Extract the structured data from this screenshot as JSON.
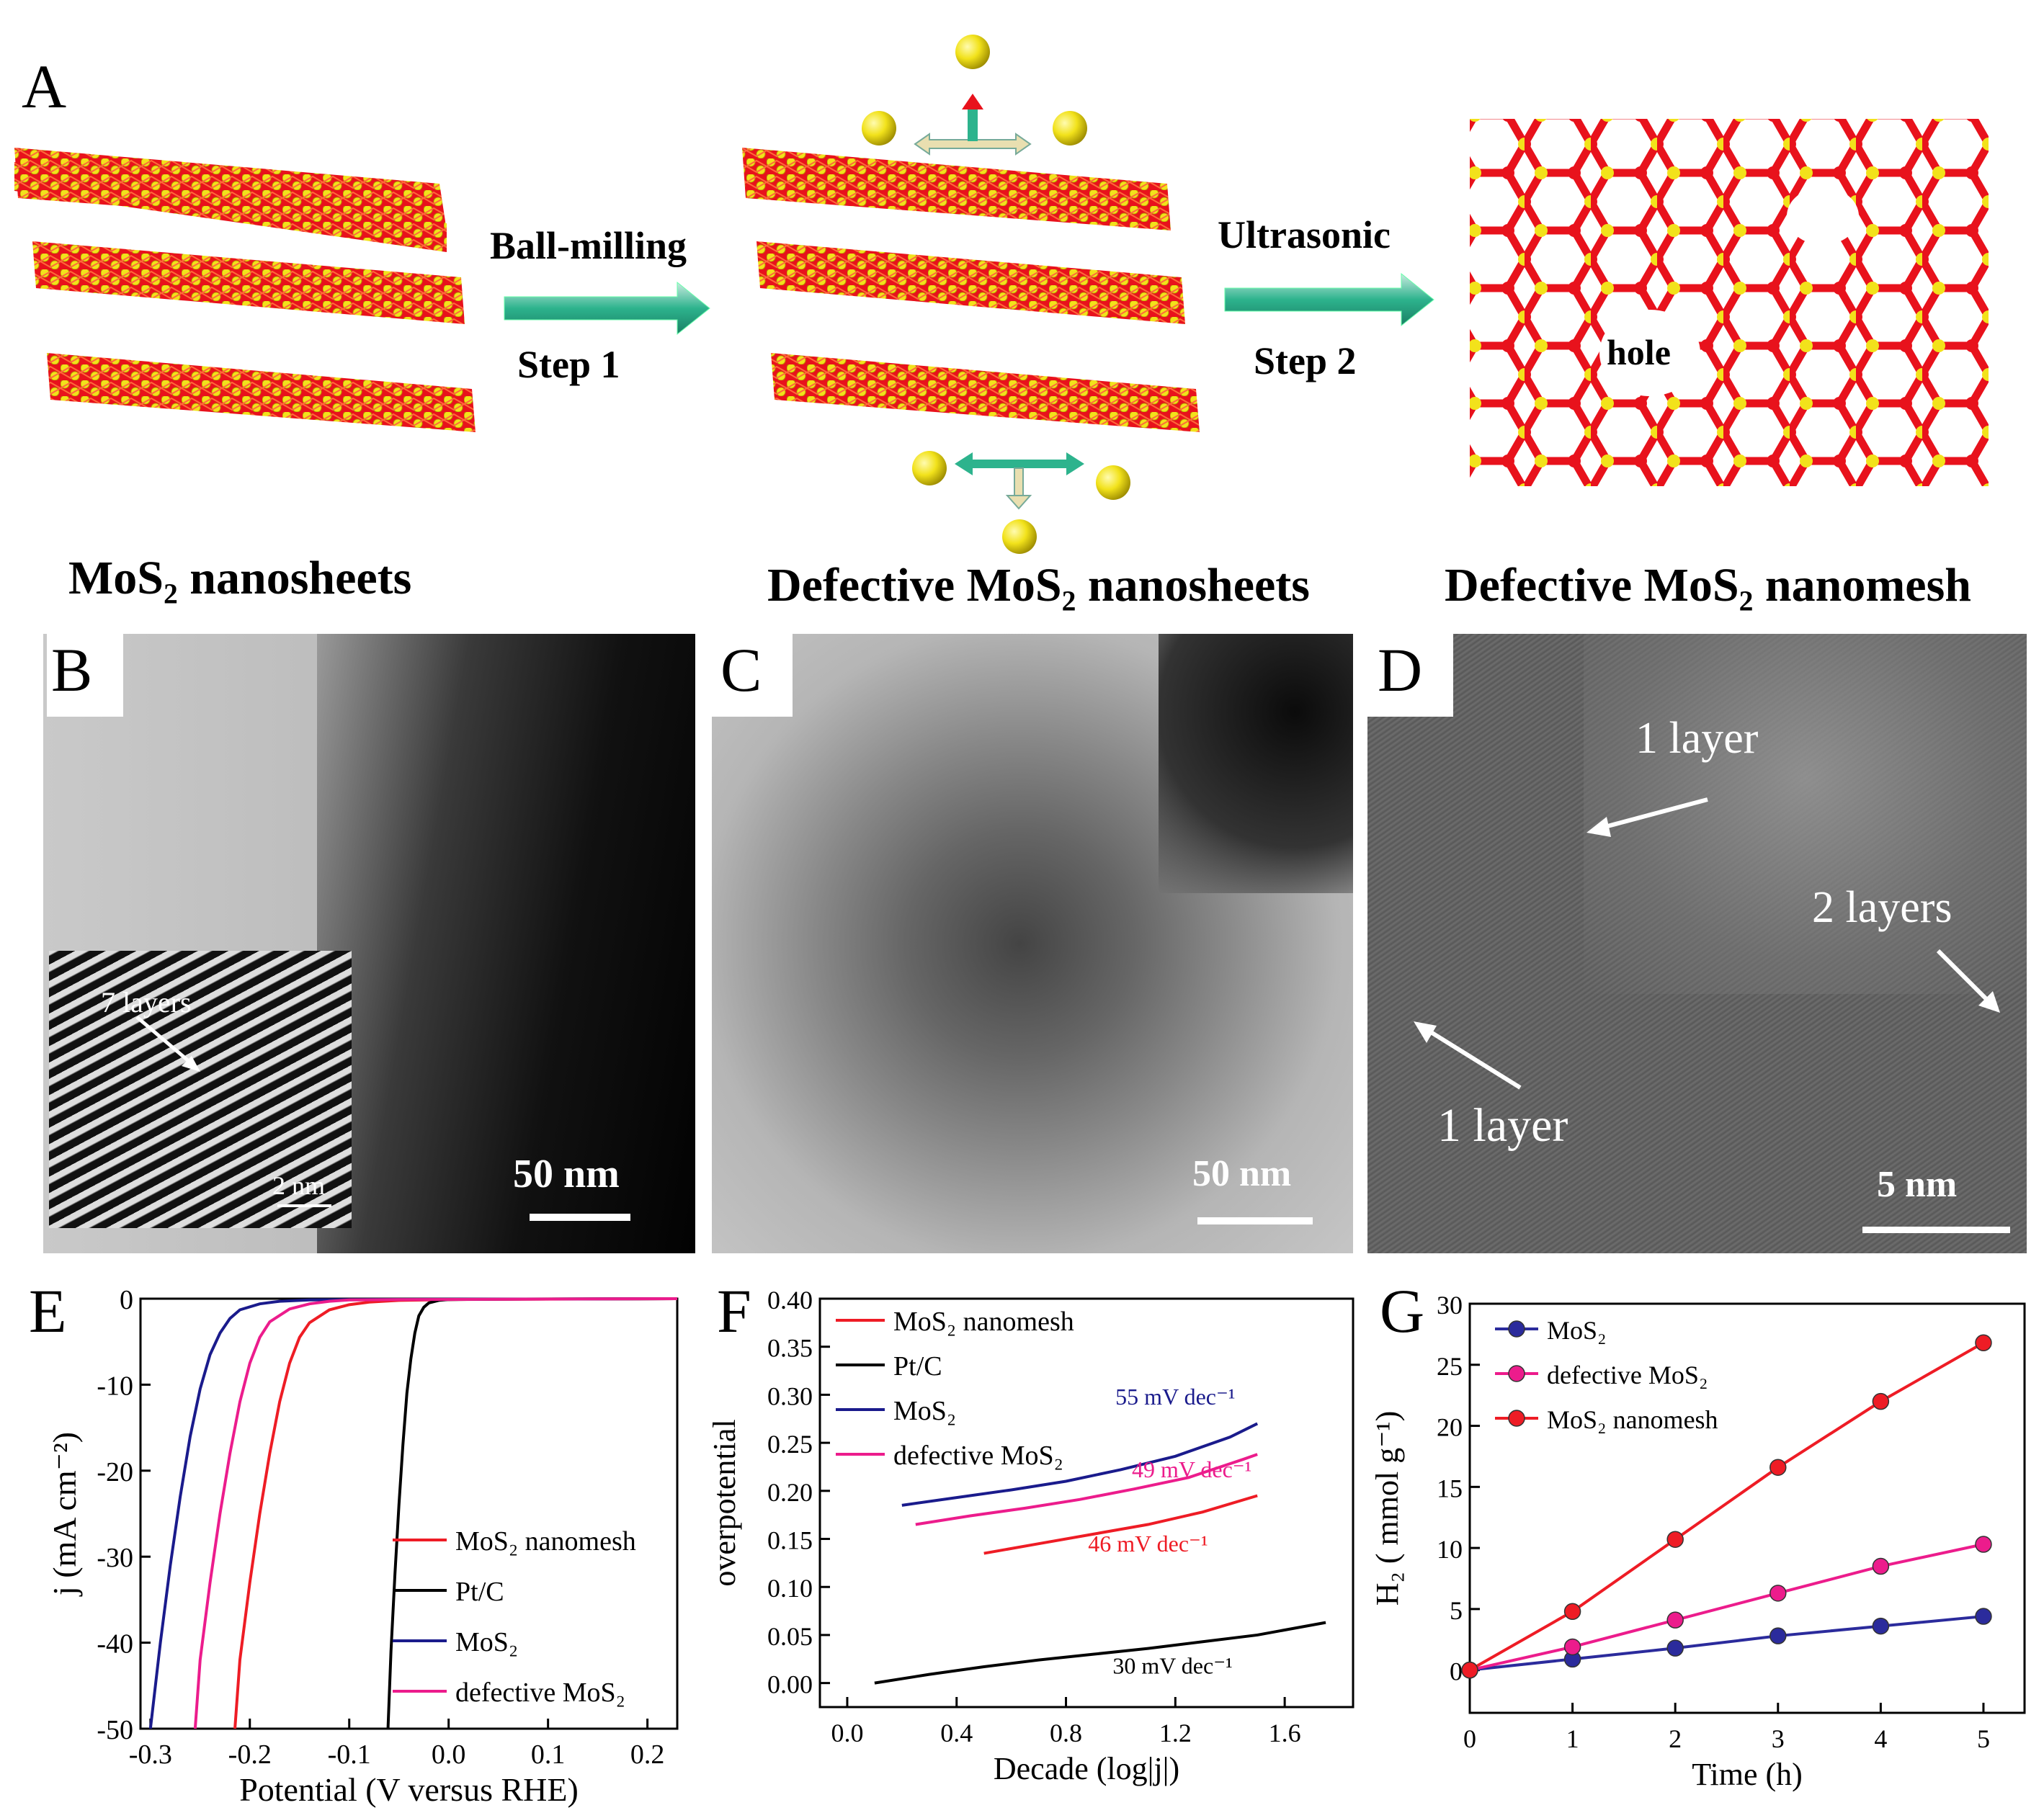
{
  "panelA": {
    "label": "A",
    "step1_top": "Ball-milling",
    "step1_bottom": "Step 1",
    "step2_top": "Ultrasonic",
    "step2_bottom": "Step 2",
    "hole_label": "hole",
    "caption1": "MoS₂ nanosheets",
    "caption2": "Defective MoS₂ nanosheets",
    "caption3": "Defective MoS₂ nanomesh",
    "colors": {
      "mo": "#e8121c",
      "s": "#f2e21b",
      "arrow": "#2db38d"
    }
  },
  "panelB": {
    "label": "B",
    "inset_label": "7 layers",
    "inset_scale": "2 nm",
    "scale": "50 nm"
  },
  "panelC": {
    "label": "C",
    "scale": "50 nm"
  },
  "panelD": {
    "label": "D",
    "annot1": "1 layer",
    "annot2": "2 layers",
    "annot3": "1 layer",
    "scale": "5 nm"
  },
  "chart_data": [
    {
      "panel": "E",
      "type": "line",
      "xlabel": "Potential (V versus RHE)",
      "ylabel": "j (mA cm⁻²)",
      "xlim": [
        -0.31,
        0.23
      ],
      "ylim": [
        -50,
        0
      ],
      "xticks": [
        "-0.3",
        "-0.2",
        "-0.1",
        "0.0",
        "0.1",
        "0.2"
      ],
      "yticks": [
        "0",
        "-10",
        "-20",
        "-30",
        "-40",
        "-50"
      ],
      "legend_position": "lower-right",
      "series": [
        {
          "name": "MoS₂ nanomesh",
          "color": "#ee1c25",
          "x": [
            -0.215,
            -0.21,
            -0.2,
            -0.19,
            -0.18,
            -0.17,
            -0.16,
            -0.15,
            -0.14,
            -0.12,
            -0.1,
            -0.08,
            -0.05,
            0.0,
            0.23
          ],
          "y": [
            -50,
            -42,
            -33,
            -25,
            -18,
            -12,
            -7.5,
            -4.5,
            -2.8,
            -1.3,
            -0.7,
            -0.4,
            -0.2,
            -0.1,
            0
          ]
        },
        {
          "name": "Pt/C",
          "color": "#000000",
          "x": [
            -0.061,
            -0.058,
            -0.054,
            -0.05,
            -0.046,
            -0.042,
            -0.038,
            -0.034,
            -0.03,
            -0.025,
            -0.02,
            -0.01,
            0.0,
            0.05,
            0.23
          ],
          "y": [
            -50,
            -41,
            -32,
            -24,
            -17,
            -11,
            -7,
            -4,
            -2,
            -1,
            -0.5,
            -0.2,
            -0.1,
            -0.05,
            0
          ]
        },
        {
          "name": "MoS₂",
          "color": "#1a1b8c",
          "x": [
            -0.3,
            -0.29,
            -0.28,
            -0.27,
            -0.26,
            -0.25,
            -0.24,
            -0.23,
            -0.22,
            -0.21,
            -0.19,
            -0.17,
            -0.14,
            -0.1,
            0.23
          ],
          "y": [
            -50,
            -40,
            -31,
            -23,
            -16,
            -10.5,
            -6.5,
            -4,
            -2.3,
            -1.3,
            -0.6,
            -0.3,
            -0.15,
            -0.1,
            0
          ]
        },
        {
          "name": "defective MoS₂",
          "color": "#ec1c8c",
          "x": [
            -0.255,
            -0.25,
            -0.24,
            -0.23,
            -0.22,
            -0.21,
            -0.2,
            -0.19,
            -0.18,
            -0.16,
            -0.14,
            -0.12,
            -0.1,
            -0.05,
            0.23
          ],
          "y": [
            -50,
            -42,
            -33,
            -25,
            -18,
            -12,
            -7.5,
            -4.5,
            -2.7,
            -1.2,
            -0.6,
            -0.3,
            -0.15,
            -0.1,
            0
          ]
        }
      ]
    },
    {
      "panel": "F",
      "type": "line",
      "xlabel": "Decade (log|j|)",
      "ylabel": "overpotential",
      "xlim": [
        -0.1,
        1.85
      ],
      "ylim": [
        -0.025,
        0.4
      ],
      "xticks": [
        "0.0",
        "0.4",
        "0.8",
        "1.2",
        "1.6"
      ],
      "yticks": [
        "0.00",
        "0.05",
        "0.10",
        "0.15",
        "0.20",
        "0.25",
        "0.30",
        "0.35",
        "0.40"
      ],
      "legend_position": "top-left",
      "annotations": [
        {
          "text": "55 mV dec⁻¹",
          "x": 1.2,
          "y": 0.29,
          "color": "#1a1b8c"
        },
        {
          "text": "49 mV dec⁻¹",
          "x": 1.26,
          "y": 0.214,
          "color": "#ec1c8c"
        },
        {
          "text": "46 mV dec⁻¹",
          "x": 1.1,
          "y": 0.137,
          "color": "#ee1c25"
        },
        {
          "text": "30 mV dec⁻¹",
          "x": 1.19,
          "y": 0.01,
          "color": "#000000"
        }
      ],
      "series": [
        {
          "name": "MoS₂ nanomesh",
          "color": "#ee1c25",
          "x": [
            0.5,
            0.7,
            0.9,
            1.1,
            1.3,
            1.5
          ],
          "y": [
            0.135,
            0.145,
            0.155,
            0.165,
            0.178,
            0.195
          ]
        },
        {
          "name": "Pt/C",
          "color": "#000000",
          "x": [
            0.1,
            0.3,
            0.5,
            0.7,
            0.9,
            1.1,
            1.3,
            1.5,
            1.75
          ],
          "y": [
            0.0,
            0.009,
            0.017,
            0.024,
            0.03,
            0.036,
            0.043,
            0.05,
            0.063
          ]
        },
        {
          "name": "MoS₂",
          "color": "#1a1b8c",
          "x": [
            0.2,
            0.4,
            0.6,
            0.8,
            1.0,
            1.2,
            1.4,
            1.5
          ],
          "y": [
            0.185,
            0.193,
            0.201,
            0.21,
            0.222,
            0.236,
            0.256,
            0.27
          ]
        },
        {
          "name": "defective MoS₂",
          "color": "#ec1c8c",
          "x": [
            0.25,
            0.45,
            0.65,
            0.85,
            1.05,
            1.25,
            1.45,
            1.5
          ],
          "y": [
            0.165,
            0.174,
            0.182,
            0.191,
            0.202,
            0.214,
            0.233,
            0.238
          ]
        }
      ]
    },
    {
      "panel": "G",
      "type": "line",
      "xlabel": "Time (h)",
      "ylabel": "H₂ ( mmol g⁻¹)",
      "xlim": [
        0,
        5.4
      ],
      "ylim": [
        -3.5,
        30
      ],
      "xticks": [
        "0",
        "1",
        "2",
        "3",
        "4",
        "5"
      ],
      "yticks": [
        "0",
        "5",
        "10",
        "15",
        "20",
        "25",
        "30"
      ],
      "legend_position": "top-left",
      "series": [
        {
          "name": "MoS₂",
          "color": "#2b2b9c",
          "x": [
            0,
            1,
            2,
            3,
            4,
            5
          ],
          "y": [
            0,
            0.9,
            1.8,
            2.8,
            3.6,
            4.4
          ]
        },
        {
          "name": "defective MoS₂",
          "color": "#ec1c8c",
          "x": [
            0,
            1,
            2,
            3,
            4,
            5
          ],
          "y": [
            0,
            1.9,
            4.1,
            6.3,
            8.5,
            10.3
          ]
        },
        {
          "name": "MoS₂ nanomesh",
          "color": "#ee1c25",
          "x": [
            0,
            1,
            2,
            3,
            4,
            5
          ],
          "y": [
            0,
            4.8,
            10.7,
            16.6,
            22.0,
            26.8
          ]
        }
      ]
    }
  ]
}
